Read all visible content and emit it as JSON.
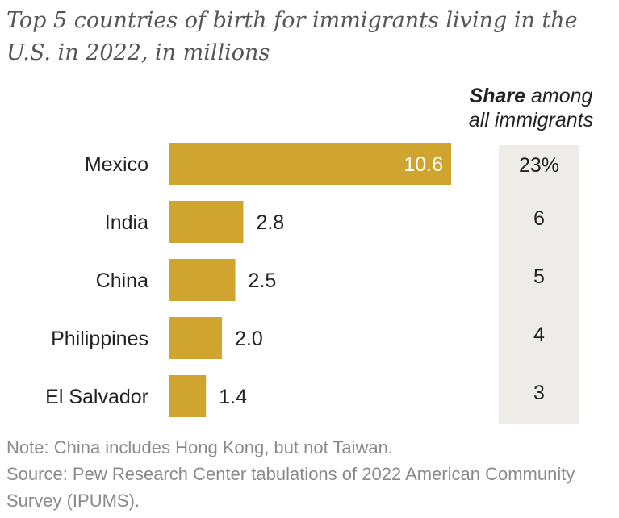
{
  "title": "Top 5 countries of birth for immigrants living in the U.S. in 2022, in millions",
  "share_header": {
    "bold": "Share",
    "rest_line1": " among",
    "line2": "all immigrants"
  },
  "notes": {
    "note": "Note: China includes Hong Kong, but not Taiwan.",
    "source": "Source: Pew Research Center tabulations of 2022 American Community Survey (IPUMS)."
  },
  "colors": {
    "bar": "#cfa52f",
    "panel": "#eeece8",
    "label_inside": "#ffffff",
    "label_outside": "#222222"
  },
  "chart_data": {
    "type": "bar",
    "orientation": "horizontal",
    "title": "Top 5 countries of birth for immigrants living in the U.S. in 2022, in millions",
    "categories": [
      "Mexico",
      "India",
      "China",
      "Philippines",
      "El Salvador"
    ],
    "values": [
      10.6,
      2.8,
      2.5,
      2.0,
      1.4
    ],
    "value_labels": [
      "10.6",
      "2.8",
      "2.5",
      "2.0",
      "1.4"
    ],
    "share_among_all_immigrants": [
      "23%",
      "6",
      "5",
      "4",
      "3"
    ],
    "units": "millions",
    "xlim": [
      0,
      10.6
    ]
  }
}
